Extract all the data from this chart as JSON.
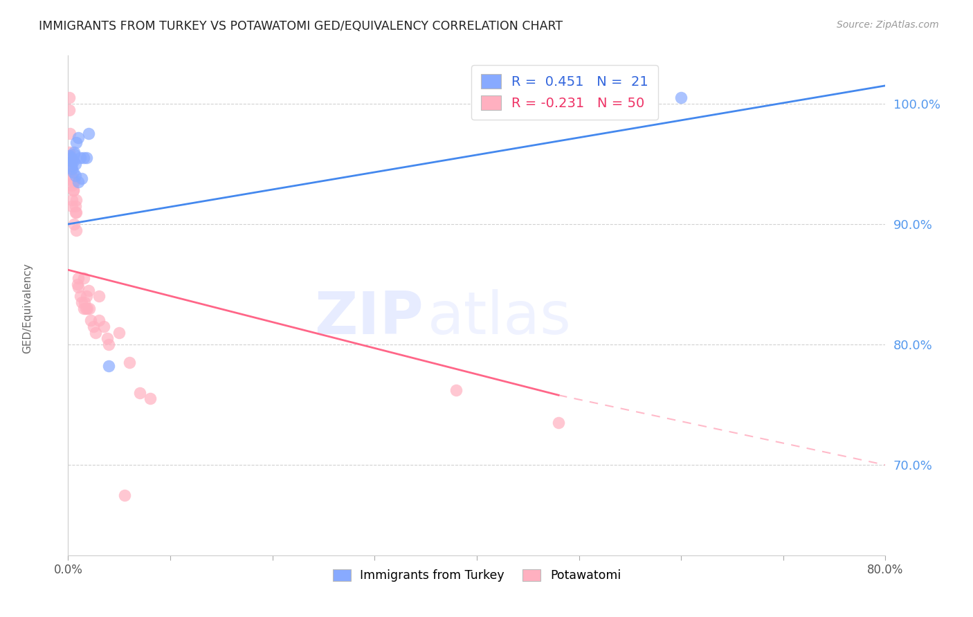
{
  "title": "IMMIGRANTS FROM TURKEY VS POTAWATOMI GED/EQUIVALENCY CORRELATION CHART",
  "source": "Source: ZipAtlas.com",
  "ylabel": "GED/Equivalency",
  "xmin": 0.0,
  "xmax": 0.8,
  "ymin": 0.625,
  "ymax": 1.04,
  "blue_color": "#88AAFF",
  "pink_color": "#FFB0C0",
  "blue_line_color": "#4488EE",
  "pink_line_color": "#FF6688",
  "watermark_zip": "ZIP",
  "watermark_atlas": "atlas",
  "blue_scatter": [
    [
      0.001,
      0.957
    ],
    [
      0.003,
      0.955
    ],
    [
      0.003,
      0.948
    ],
    [
      0.004,
      0.952
    ],
    [
      0.004,
      0.946
    ],
    [
      0.005,
      0.952
    ],
    [
      0.005,
      0.943
    ],
    [
      0.006,
      0.96
    ],
    [
      0.006,
      0.958
    ],
    [
      0.007,
      0.95
    ],
    [
      0.007,
      0.94
    ],
    [
      0.008,
      0.968
    ],
    [
      0.01,
      0.935
    ],
    [
      0.01,
      0.972
    ],
    [
      0.012,
      0.955
    ],
    [
      0.013,
      0.938
    ],
    [
      0.015,
      0.955
    ],
    [
      0.018,
      0.955
    ],
    [
      0.02,
      0.975
    ],
    [
      0.04,
      0.782
    ],
    [
      0.6,
      1.005
    ]
  ],
  "pink_scatter": [
    [
      0.001,
      1.005
    ],
    [
      0.001,
      0.995
    ],
    [
      0.001,
      0.96
    ],
    [
      0.002,
      0.975
    ],
    [
      0.002,
      0.955
    ],
    [
      0.002,
      0.948
    ],
    [
      0.003,
      0.948
    ],
    [
      0.003,
      0.94
    ],
    [
      0.003,
      0.94
    ],
    [
      0.004,
      0.932
    ],
    [
      0.004,
      0.92
    ],
    [
      0.004,
      0.915
    ],
    [
      0.005,
      0.935
    ],
    [
      0.005,
      0.928
    ],
    [
      0.005,
      0.928
    ],
    [
      0.006,
      0.935
    ],
    [
      0.006,
      0.9
    ],
    [
      0.007,
      0.915
    ],
    [
      0.007,
      0.91
    ],
    [
      0.008,
      0.895
    ],
    [
      0.008,
      0.92
    ],
    [
      0.008,
      0.91
    ],
    [
      0.009,
      0.85
    ],
    [
      0.01,
      0.855
    ],
    [
      0.01,
      0.848
    ],
    [
      0.012,
      0.84
    ],
    [
      0.013,
      0.835
    ],
    [
      0.015,
      0.855
    ],
    [
      0.015,
      0.83
    ],
    [
      0.016,
      0.835
    ],
    [
      0.017,
      0.83
    ],
    [
      0.018,
      0.84
    ],
    [
      0.019,
      0.83
    ],
    [
      0.02,
      0.845
    ],
    [
      0.021,
      0.83
    ],
    [
      0.022,
      0.82
    ],
    [
      0.025,
      0.815
    ],
    [
      0.027,
      0.81
    ],
    [
      0.03,
      0.84
    ],
    [
      0.03,
      0.82
    ],
    [
      0.035,
      0.815
    ],
    [
      0.038,
      0.805
    ],
    [
      0.04,
      0.8
    ],
    [
      0.05,
      0.81
    ],
    [
      0.055,
      0.675
    ],
    [
      0.06,
      0.785
    ],
    [
      0.07,
      0.76
    ],
    [
      0.08,
      0.755
    ],
    [
      0.38,
      0.762
    ],
    [
      0.48,
      0.735
    ]
  ],
  "blue_line": [
    [
      0.0,
      0.9
    ],
    [
      0.8,
      1.015
    ]
  ],
  "pink_line_solid": [
    [
      0.0,
      0.862
    ],
    [
      0.48,
      0.758
    ]
  ],
  "pink_line_dash": [
    [
      0.48,
      0.758
    ],
    [
      0.8,
      0.7
    ]
  ],
  "x_ticks": [
    0.0,
    0.1,
    0.2,
    0.3,
    0.4,
    0.5,
    0.6,
    0.7,
    0.8
  ],
  "y_ticks": [
    0.7,
    0.8,
    0.9,
    1.0
  ],
  "legend1_labels": [
    "R =  0.451   N =  21",
    "R = -0.231   N = 50"
  ],
  "legend2_labels": [
    "Immigrants from Turkey",
    "Potawatomi"
  ]
}
